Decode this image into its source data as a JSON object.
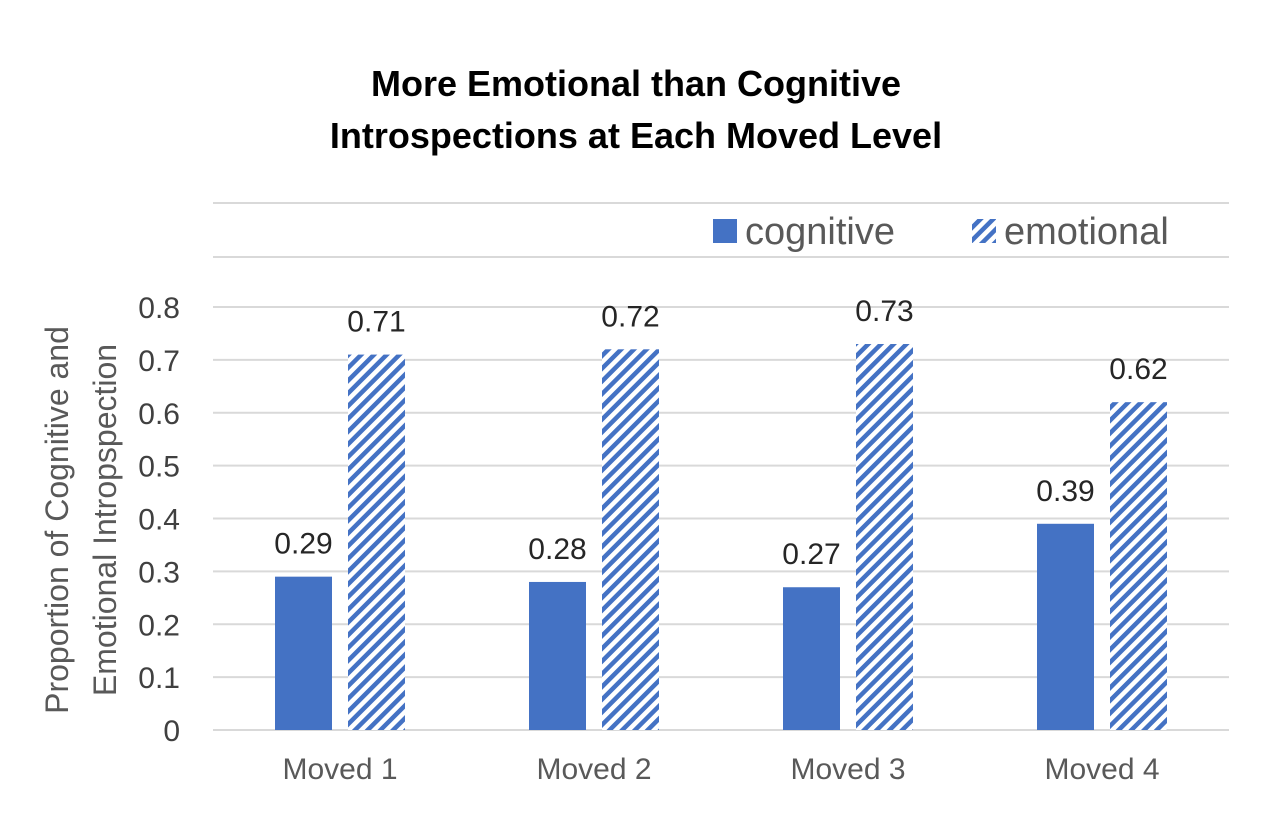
{
  "chart_data": {
    "type": "bar",
    "title_lines": [
      "More Emotional than Cognitive",
      "Introspections at Each Moved Level"
    ],
    "ylabel_lines": [
      "Proportion of Cognitive and",
      "Emotional Intropspection"
    ],
    "xlabel": "",
    "categories": [
      "Moved 1",
      "Moved 2",
      "Moved 3",
      "Moved 4"
    ],
    "series": [
      {
        "name": "cognitive",
        "values": [
          0.29,
          0.28,
          0.27,
          0.39
        ],
        "labels": [
          "0.29",
          "0.28",
          "0.27",
          "0.39"
        ],
        "color": "#4472C4",
        "pattern": "solid"
      },
      {
        "name": "emotional",
        "values": [
          0.71,
          0.72,
          0.73,
          0.62
        ],
        "labels": [
          "0.71",
          "0.72",
          "0.73",
          "0.62"
        ],
        "color": "#4472C4",
        "pattern": "diagonal-stripes"
      }
    ],
    "ylim": [
      0,
      0.8
    ],
    "yticks": [
      "0",
      "0.1",
      "0.2",
      "0.3",
      "0.4",
      "0.5",
      "0.6",
      "0.7",
      "0.8"
    ],
    "grid": true,
    "legend_position": "top-right"
  }
}
